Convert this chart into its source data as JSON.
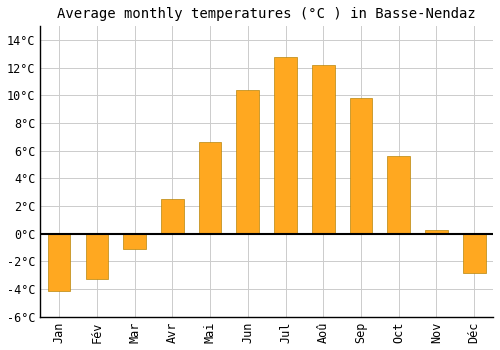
{
  "title": "Average monthly temperatures (°C ) in Basse-Nendaz",
  "months": [
    "Jan",
    "Fév",
    "Mar",
    "Avr",
    "Mai",
    "Jun",
    "Jul",
    "Aoû",
    "Sep",
    "Oct",
    "Nov",
    "Déc"
  ],
  "temperatures": [
    -4.1,
    -3.3,
    -1.1,
    2.5,
    6.6,
    10.4,
    12.8,
    12.2,
    9.8,
    5.6,
    0.3,
    -2.8
  ],
  "bar_color": "#FFA820",
  "bar_edge_color": "#B8860B",
  "background_color": "#ffffff",
  "grid_color": "#cccccc",
  "ylim": [
    -6,
    15
  ],
  "yticks": [
    -6,
    -4,
    -2,
    0,
    2,
    4,
    6,
    8,
    10,
    12,
    14
  ],
  "title_fontsize": 10,
  "tick_fontsize": 8.5,
  "zero_line_color": "#000000",
  "bar_width": 0.6
}
